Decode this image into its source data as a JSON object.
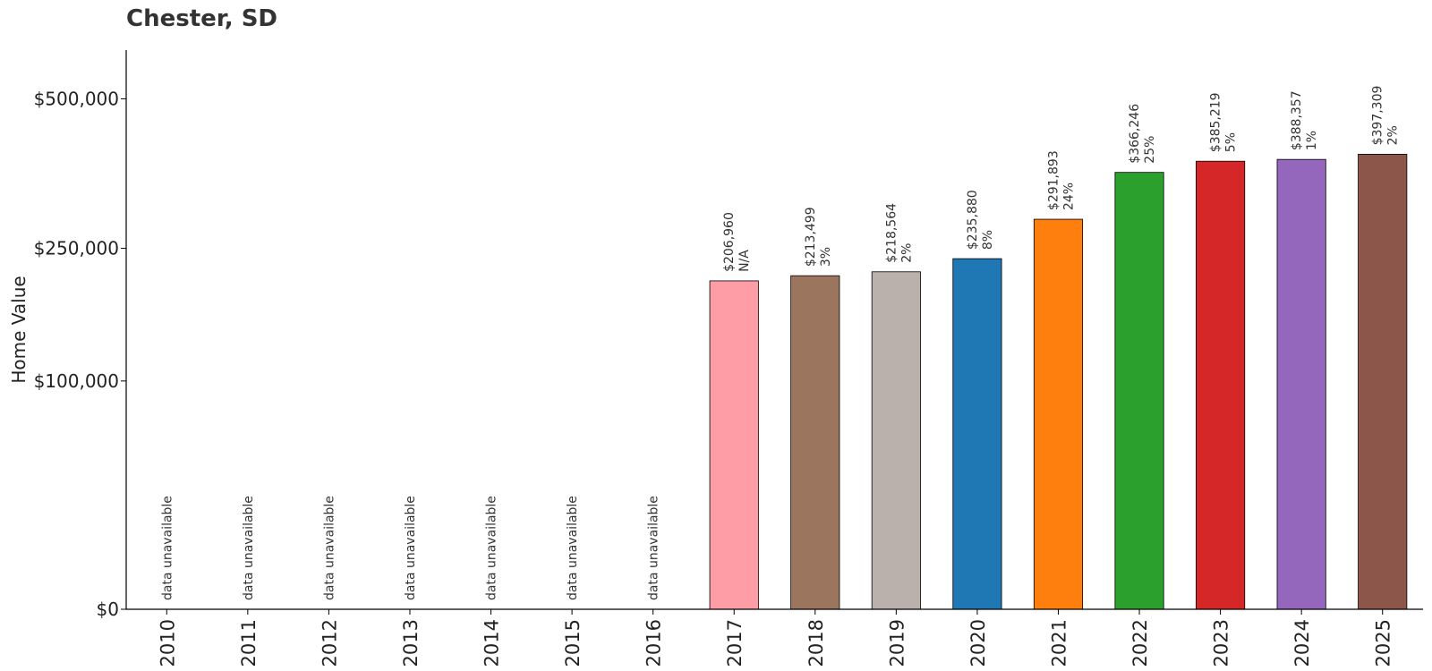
{
  "chart_data": {
    "type": "bar",
    "title": "Chester, SD",
    "ylabel": "Home Value",
    "xlabel": "",
    "categories": [
      "2010",
      "2011",
      "2012",
      "2013",
      "2014",
      "2015",
      "2016",
      "2017",
      "2018",
      "2019",
      "2020",
      "2021",
      "2022",
      "2023",
      "2024",
      "2025"
    ],
    "values": [
      null,
      null,
      null,
      null,
      null,
      null,
      null,
      206960,
      213499,
      218564,
      235880,
      291893,
      366246,
      385219,
      388357,
      397309
    ],
    "value_labels": [
      "",
      "",
      "",
      "",
      "",
      "",
      "",
      "$206,960",
      "$213,499",
      "$218,564",
      "$235,880",
      "$291,893",
      "$366,246",
      "$385,219",
      "$388,357",
      "$397,309"
    ],
    "change_labels": [
      "",
      "",
      "",
      "",
      "",
      "",
      "",
      "N/A",
      "3%",
      "2%",
      "8%",
      "24%",
      "25%",
      "5%",
      "1%",
      "2%"
    ],
    "unavailable_label": "data unavailable",
    "bar_colors": [
      "",
      "",
      "",
      "",
      "",
      "",
      "",
      "#ff9da7",
      "#9c755f",
      "#bab0ac",
      "#1f77b4",
      "#ff7f0e",
      "#2ca02c",
      "#d62728",
      "#9467bd",
      "#8c564b"
    ],
    "yticks": [
      0,
      100000,
      250000,
      500000
    ],
    "ytick_labels": [
      "$0",
      "$100,000",
      "$250,000",
      "$500,000"
    ],
    "ylim": [
      0,
      600000
    ],
    "scale": "sqrt",
    "grid": false,
    "legend": "none"
  }
}
